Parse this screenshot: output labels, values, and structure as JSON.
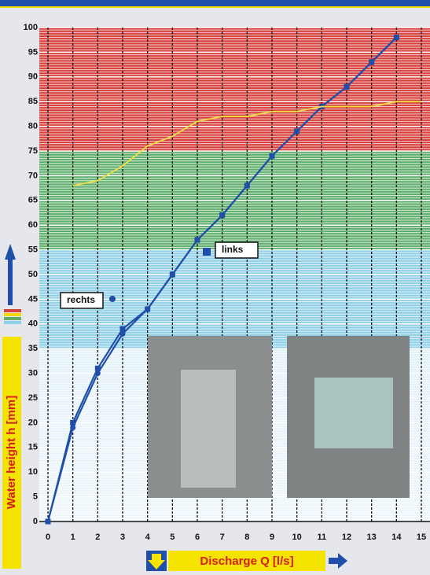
{
  "chart_data": {
    "type": "line",
    "x_label": "Discharge Q [l/s]",
    "y_label": "Water height h [mm]",
    "xlim": [
      0,
      15
    ],
    "ylim": [
      0,
      100
    ],
    "xticks": [
      0,
      1,
      2,
      3,
      4,
      5,
      6,
      7,
      8,
      9,
      10,
      11,
      12,
      13,
      14,
      15
    ],
    "yticks": [
      0,
      5,
      10,
      15,
      20,
      25,
      30,
      35,
      40,
      45,
      50,
      55,
      60,
      65,
      70,
      75,
      80,
      85,
      90,
      95,
      100
    ],
    "grid": true,
    "bands": [
      {
        "from": 75,
        "to": 100,
        "color": "#d7403c"
      },
      {
        "from": 55,
        "to": 75,
        "color": "#5fae6c"
      },
      {
        "from": 35,
        "to": 55,
        "color": "#8fcfe8"
      }
    ],
    "series": [
      {
        "name": "links",
        "color": "#1f4fa8",
        "marker": "square",
        "x": [
          0,
          1,
          2,
          3,
          4,
          5,
          6,
          7,
          8,
          9,
          10,
          11,
          12,
          13,
          14
        ],
        "values": [
          0,
          20,
          31,
          39,
          43,
          50,
          57,
          62,
          68,
          74,
          79,
          84,
          88,
          93,
          98
        ]
      },
      {
        "name": "rechts",
        "color": "#1f4fa8",
        "marker": "circle",
        "x": [
          0,
          1,
          2,
          3,
          4,
          5,
          6,
          7,
          8,
          9,
          10,
          11,
          12,
          13,
          14
        ],
        "values": [
          0,
          19,
          30,
          38,
          43,
          50,
          57,
          62,
          68,
          74,
          79,
          84,
          88,
          93,
          98
        ]
      },
      {
        "color": "#f0e040",
        "marker": "none",
        "x": [
          1,
          2,
          3,
          4,
          5,
          6,
          7,
          8,
          9,
          10,
          11,
          12,
          13,
          14,
          15
        ],
        "values": [
          68,
          69,
          72,
          76,
          78,
          81,
          82,
          82,
          83,
          83,
          84,
          84,
          84,
          85,
          85
        ]
      }
    ]
  }
}
